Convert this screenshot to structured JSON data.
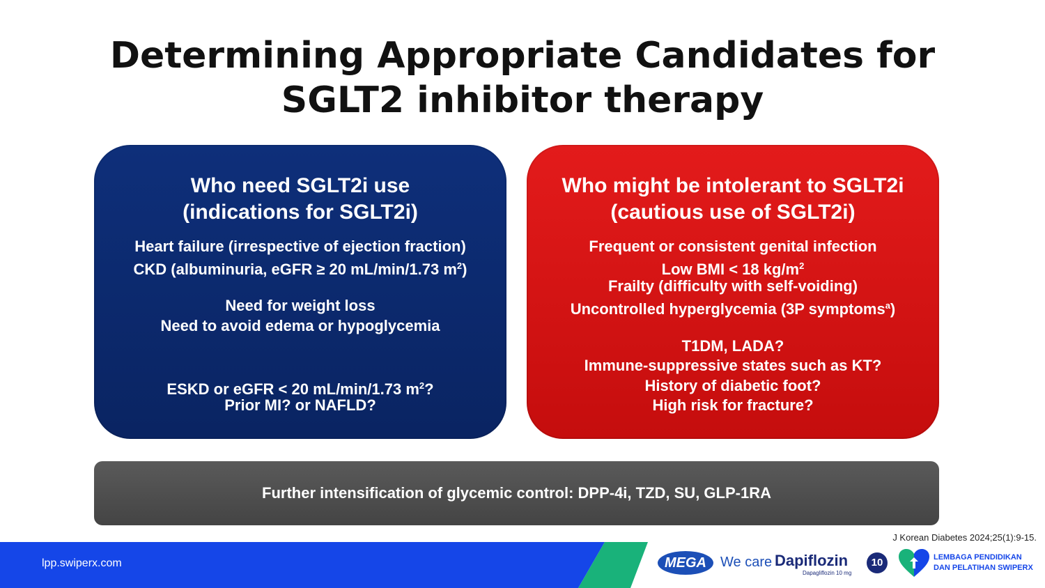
{
  "title": {
    "line1": "Determining Appropriate Candidates for",
    "line2": "SGLT2 inhibitor therapy"
  },
  "left_panel": {
    "heading1": "Who need SGLT2i use",
    "heading2": "(indications for SGLT2i)",
    "lines": [
      "Heart failure (irrespective of ejection fraction)",
      "CKD (albuminuria, eGFR ≥ 20 mL/min/1.73 m",
      "Need for weight loss",
      "Need to avoid edema or hypoglycemia",
      "ESKD or eGFR < 20 mL/min/1.73 m",
      "Prior MI? or NAFLD?"
    ],
    "sup": "2",
    "line2_suffix": ")",
    "line5_suffix": "?"
  },
  "right_panel": {
    "heading1": "Who might be intolerant to SGLT2i",
    "heading2": "(cautious use of SGLT2i)",
    "lines": [
      "Frequent or consistent genital infection",
      "Low BMI < 18 kg/m",
      "Frailty (difficulty with self-voiding)",
      "Uncontrolled hyperglycemia (3P symptoms",
      "T1DM, LADA?",
      "Immune-suppressive states such as KT?",
      "History of diabetic foot?",
      "High risk for fracture?"
    ],
    "sup_m2": "2",
    "sup_a": "a",
    "line4_suffix": ")"
  },
  "bottom_bar": "Further intensification of glycemic control: DPP-4i, TZD, SU, GLP-1RA",
  "reference": "J Korean Diabetes 2024;25(1):9-15.",
  "footer": {
    "site": "lpp.swiperx.com",
    "mega": "MEGA",
    "we_care": "We care",
    "dapiflozin": "Dapiflozin",
    "dapiflozin_sub": "Dapagliflozin 10 mg",
    "ten": "10",
    "org_line1": "LEMBAGA PENDIDIKAN",
    "org_line2": "DAN PELATIHAN SWIPERX",
    "colors": {
      "blue": "#1546e8",
      "green": "#19b27a"
    },
    "logo_icon": "heart-logo-icon"
  }
}
